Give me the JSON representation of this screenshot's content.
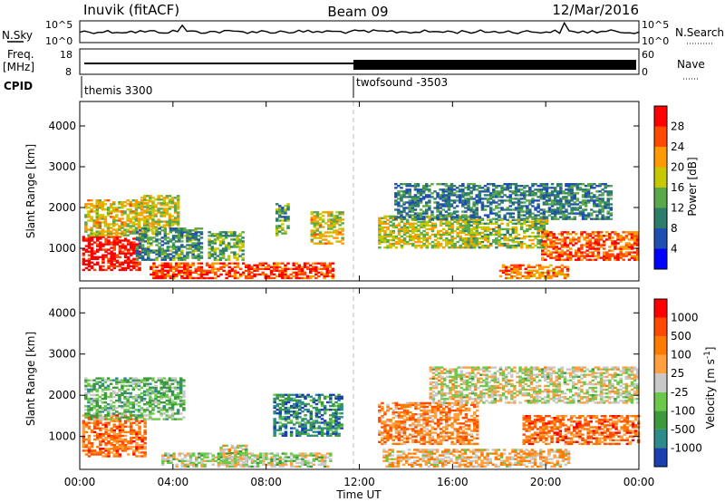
{
  "header": {
    "station": "Inuvik (fitACF)",
    "beam": "Beam 09",
    "date": "12/Mar/2016"
  },
  "top_panels": {
    "nsky_label": "N.Sky",
    "nsky_ticks": [
      "10^5",
      "10^0"
    ],
    "nsearch_label": "N.Search",
    "freq_label": "Freq.",
    "freq_unit": "[MHz]",
    "freq_ticks": [
      "18",
      "8"
    ],
    "nave_label": "Nave",
    "nave_ticks": [
      "60",
      "0"
    ],
    "cpid_label": "CPID",
    "cpid_left": "themis 3300",
    "cpid_right": "twofsound -3503"
  },
  "chart_data": [
    {
      "type": "heatmap",
      "name": "power",
      "ylabel": "Slant Range [km]",
      "xlabel": "Time UT",
      "xlim": [
        0,
        24
      ],
      "ylim": [
        200,
        4600
      ],
      "x_ticks": [
        "00:00",
        "04:00",
        "08:00",
        "12:00",
        "16:00",
        "20:00",
        "00:00"
      ],
      "y_ticks": [
        1000,
        2000,
        3000,
        4000
      ],
      "colorbar": {
        "label": "Power [dB]",
        "ticks": [
          "4",
          "8",
          "12",
          "16",
          "20",
          "24",
          "28"
        ],
        "colors": [
          "#0000ff",
          "#1f4fb0",
          "#2e7d6b",
          "#5aa84a",
          "#c8c800",
          "#ff9a00",
          "#ff4a00",
          "#ff0000"
        ]
      },
      "regions": [
        {
          "t0": 0.1,
          "t1": 2.6,
          "r0": 450,
          "r1": 1300,
          "level": 0.95
        },
        {
          "t0": 0.2,
          "t1": 3.2,
          "r0": 1300,
          "r1": 2200,
          "level": 0.6
        },
        {
          "t0": 2.6,
          "t1": 4.2,
          "r0": 1500,
          "r1": 2300,
          "level": 0.55
        },
        {
          "t0": 2.4,
          "t1": 5.2,
          "r0": 700,
          "r1": 1500,
          "level": 0.35
        },
        {
          "t0": 3.0,
          "t1": 10.8,
          "r0": 250,
          "r1": 650,
          "level": 0.85
        },
        {
          "t0": 5.5,
          "t1": 7.0,
          "r0": 700,
          "r1": 1400,
          "level": 0.45
        },
        {
          "t0": 8.4,
          "t1": 8.9,
          "r0": 1300,
          "r1": 2100,
          "level": 0.4
        },
        {
          "t0": 9.9,
          "t1": 11.3,
          "r0": 1100,
          "r1": 1900,
          "level": 0.6
        },
        {
          "t0": 12.8,
          "t1": 17.0,
          "r0": 1000,
          "r1": 1800,
          "level": 0.55
        },
        {
          "t0": 13.5,
          "t1": 22.8,
          "r0": 1700,
          "r1": 2600,
          "level": 0.3
        },
        {
          "t0": 16.5,
          "t1": 20.0,
          "r0": 1000,
          "r1": 1700,
          "level": 0.5
        },
        {
          "t0": 19.8,
          "t1": 24.0,
          "r0": 700,
          "r1": 1400,
          "level": 0.8
        },
        {
          "t0": 18.0,
          "t1": 21.0,
          "r0": 250,
          "r1": 600,
          "level": 0.75
        }
      ]
    },
    {
      "type": "heatmap",
      "name": "velocity",
      "ylabel": "Slant Range [km]",
      "xlabel": "Time UT",
      "xlim": [
        0,
        24
      ],
      "ylim": [
        200,
        4600
      ],
      "x_ticks": [
        "00:00",
        "04:00",
        "08:00",
        "12:00",
        "16:00",
        "20:00",
        "00:00"
      ],
      "y_ticks": [
        1000,
        2000,
        3000,
        4000
      ],
      "colorbar": {
        "label": "Velocity [m s^-1]",
        "ticks": [
          "1000",
          "500",
          "100",
          "25",
          "-25",
          "-100",
          "-500",
          "-1000"
        ],
        "colors": [
          "#1a3fb0",
          "#2e8b8b",
          "#3c9a3c",
          "#6cc84a",
          "#c8c8c8",
          "#ffa040",
          "#ff7a00",
          "#ff4a00",
          "#ff0000"
        ]
      },
      "regions": [
        {
          "t0": 0.1,
          "t1": 2.8,
          "r0": 500,
          "r1": 1500,
          "level": 0.75
        },
        {
          "t0": 0.2,
          "t1": 4.5,
          "r0": 1400,
          "r1": 2400,
          "level": 0.35
        },
        {
          "t0": 3.5,
          "t1": 10.8,
          "r0": 250,
          "r1": 600,
          "level": 0.45
        },
        {
          "t0": 6.0,
          "t1": 7.2,
          "r0": 350,
          "r1": 800,
          "level": 0.5
        },
        {
          "t0": 8.3,
          "t1": 11.2,
          "r0": 1000,
          "r1": 2000,
          "level": 0.2
        },
        {
          "t0": 12.8,
          "t1": 17.0,
          "r0": 800,
          "r1": 1800,
          "level": 0.7
        },
        {
          "t0": 15.0,
          "t1": 24.0,
          "r0": 1800,
          "r1": 2700,
          "level": 0.5
        },
        {
          "t0": 19.0,
          "t1": 24.0,
          "r0": 800,
          "r1": 1500,
          "level": 0.75
        },
        {
          "t0": 13.0,
          "t1": 21.0,
          "r0": 250,
          "r1": 700,
          "level": 0.6
        }
      ]
    }
  ]
}
